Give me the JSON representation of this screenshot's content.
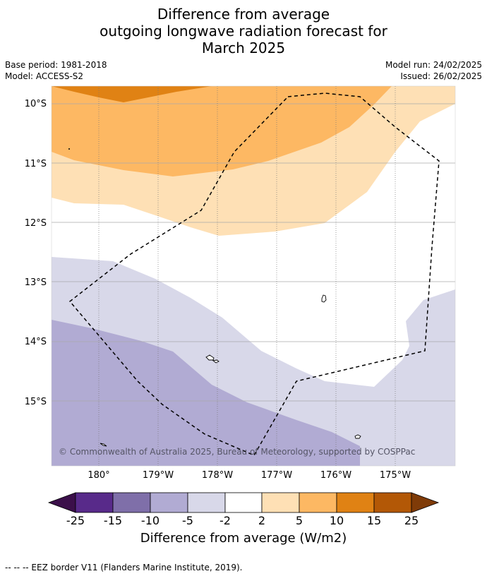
{
  "title": {
    "line1": "Difference from average",
    "line2": "outgoing longwave radiation forecast for",
    "line3": "March 2025"
  },
  "meta": {
    "base_period": "Base period: 1981-2018",
    "model": "Model: ACCESS-S2",
    "model_run": "Model run: 24/02/2025",
    "issued": "Issued: 26/02/2025"
  },
  "map": {
    "lat_labels": [
      "10°S",
      "11°S",
      "12°S",
      "13°S",
      "14°S",
      "15°S"
    ],
    "lon_labels": [
      "180°",
      "179°W",
      "178°W",
      "177°W",
      "176°W",
      "175°W"
    ],
    "copyright": "© Commonwealth of Australia 2025, Bureau of Meteorology, supported by COSPPac",
    "eez_border": "dashed"
  },
  "colorbar": {
    "title": "Difference from average (W/m2)",
    "tick_labels": [
      "-25",
      "-15",
      "-10",
      "-5",
      "-2",
      "2",
      "5",
      "10",
      "15",
      "25"
    ],
    "colors": [
      "#3b0f4a",
      "#582a8a",
      "#7f6fa9",
      "#b1abd3",
      "#d8d8e9",
      "#ffffff",
      "#fee0b5",
      "#fdb863",
      "#e08214",
      "#b35806",
      "#7f3b08"
    ]
  },
  "footnote": "--  --  -- EEZ border V11 (Flanders Marine Institute, 2019)."
}
